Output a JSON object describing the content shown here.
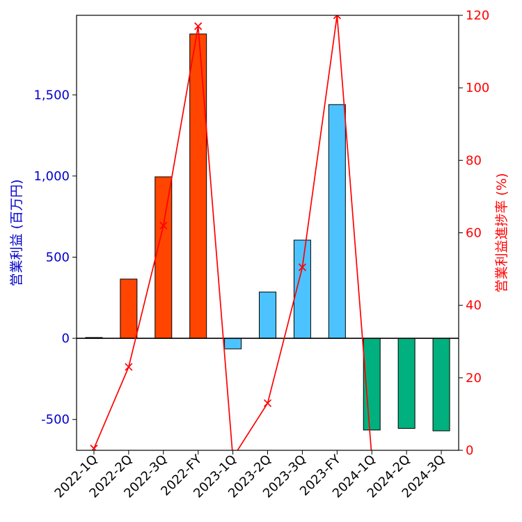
{
  "chart_data": {
    "type": "bar",
    "categories": [
      "2022-1Q",
      "2022-2Q",
      "2022-3Q",
      "2022-FY",
      "2023-1Q",
      "2023-2Q",
      "2023-3Q",
      "2023-FY",
      "2024-1Q",
      "2024-2Q",
      "2024-3Q"
    ],
    "series": [
      {
        "type": "bar",
        "axis": "left",
        "values": [
          5,
          365,
          995,
          1875,
          -65,
          285,
          605,
          1440,
          -565,
          -555,
          -570
        ],
        "colors": [
          "#ff4500",
          "#ff4500",
          "#ff4500",
          "#ff4500",
          "#4cc3ff",
          "#4cc3ff",
          "#4cc3ff",
          "#4cc3ff",
          "#00b07e",
          "#00b07e",
          "#00b07e"
        ]
      },
      {
        "type": "line",
        "axis": "right",
        "marker": "x",
        "color": "#ff0000",
        "values": [
          0.5,
          23,
          62,
          117,
          -2,
          13,
          50.5,
          120,
          -2,
          null,
          null
        ]
      }
    ],
    "ylabel": "営業利益 (百万円)",
    "ylabel_right": "営業利益進捗率 (%)",
    "ylim": [
      -690,
      1990
    ],
    "ylim_right": [
      0,
      120
    ],
    "yticks": [
      -500,
      0,
      500,
      1000,
      1500
    ],
    "yticks_right": [
      0,
      20,
      40,
      60,
      80,
      100,
      120
    ],
    "ytick_labels": [
      "-500",
      "0",
      "500",
      "1,000",
      "1,500"
    ],
    "ytick_labels_right": [
      "0",
      "20",
      "40",
      "60",
      "80",
      "100",
      "120"
    ],
    "left_axis_color": "#0000cc",
    "right_axis_color": "#ff0000",
    "grid": false,
    "zero_line": true
  }
}
